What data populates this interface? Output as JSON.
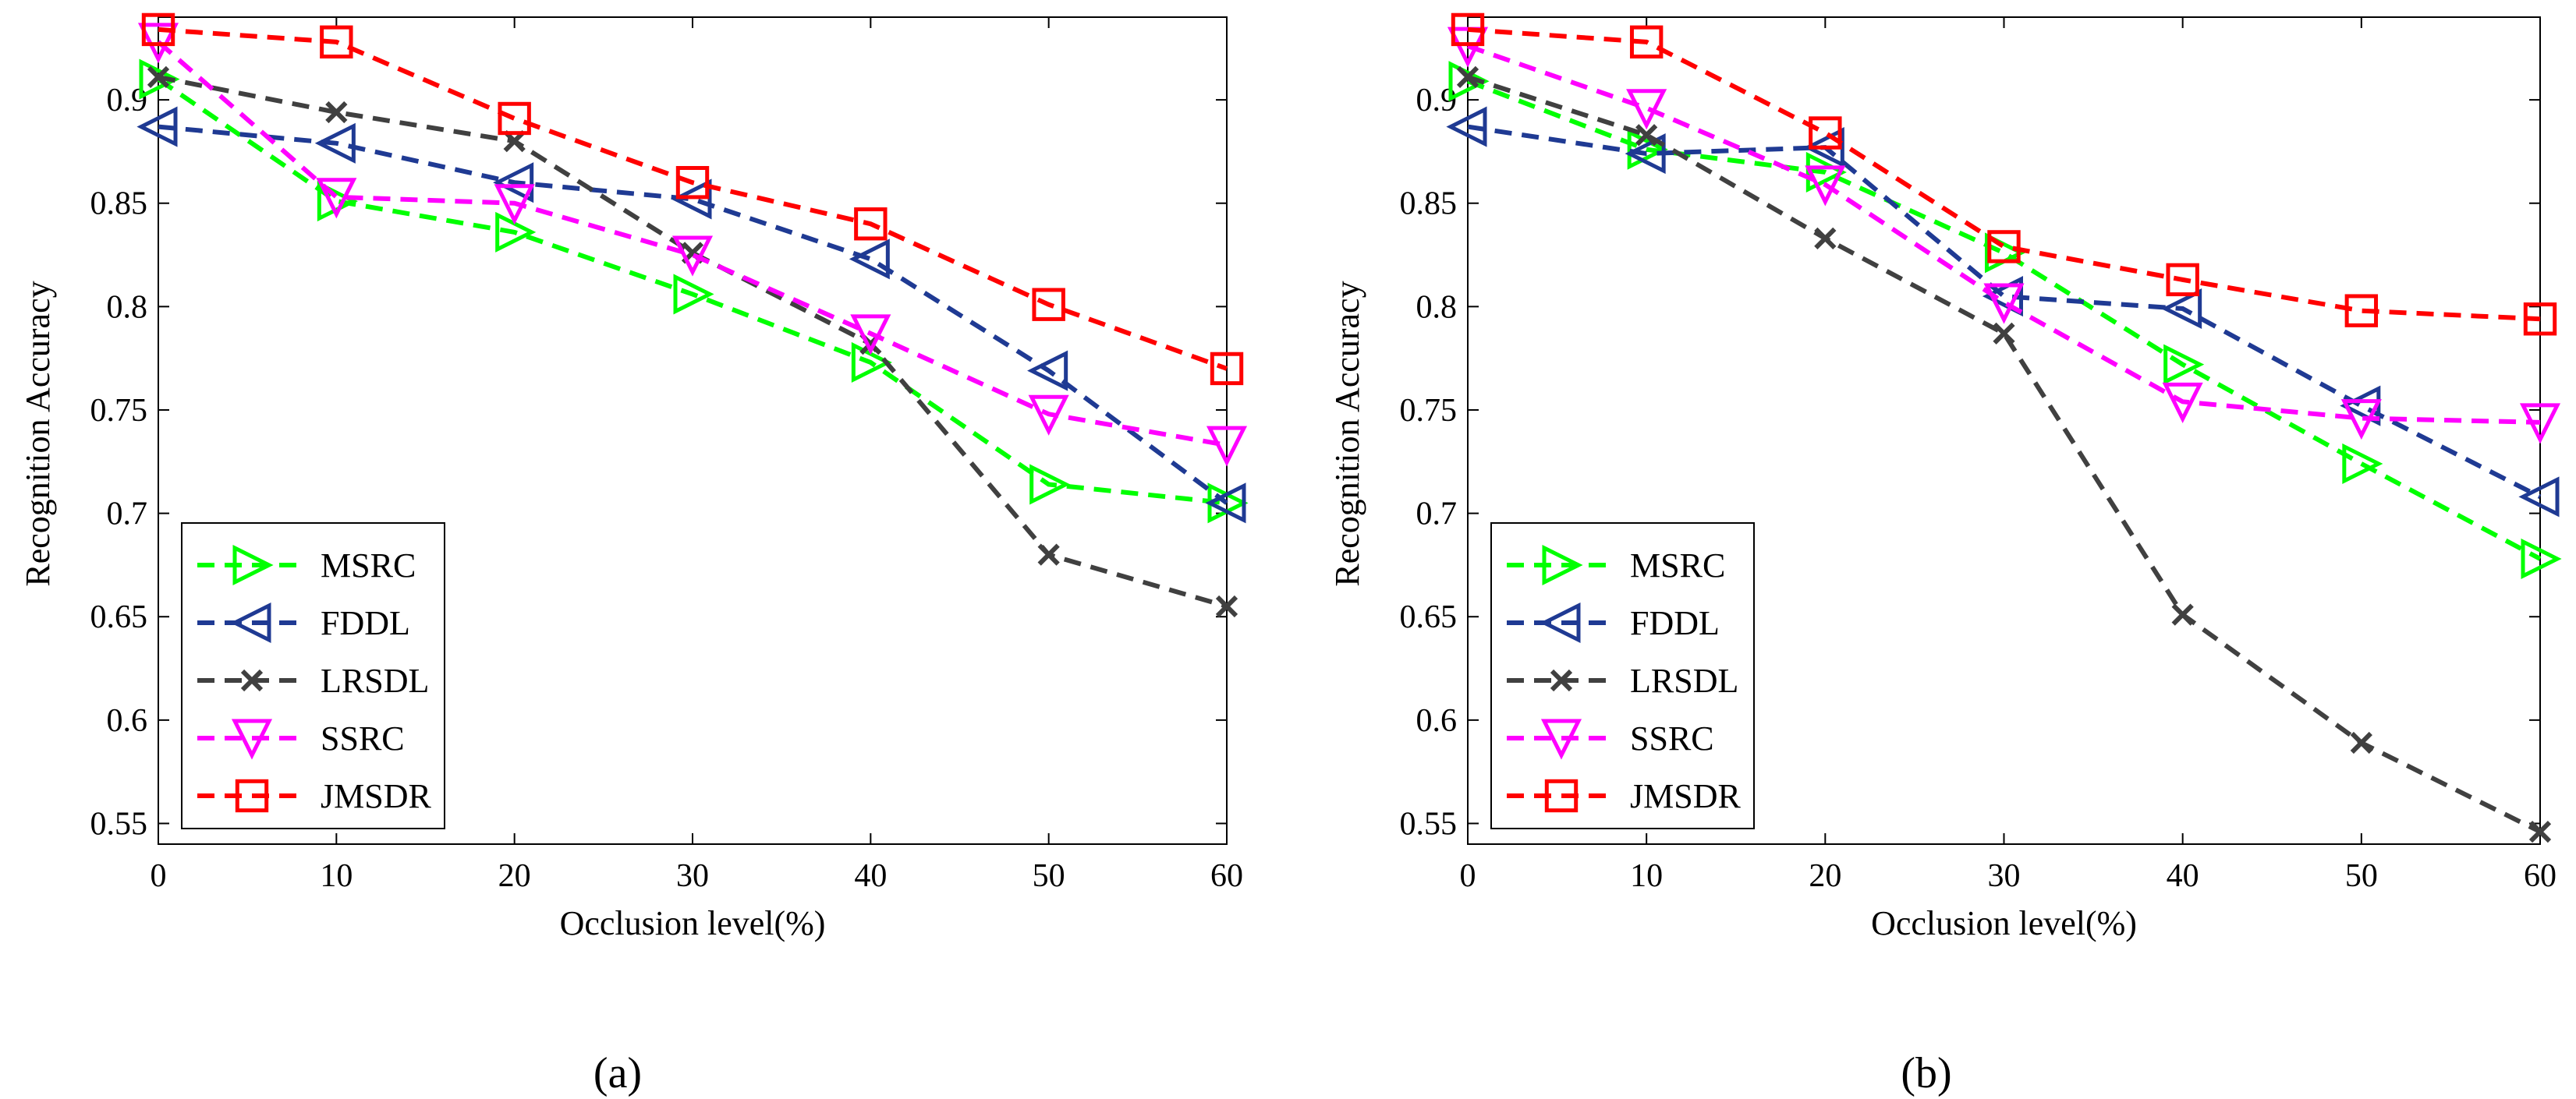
{
  "chart_data": [
    {
      "type": "line",
      "caption": "(a)",
      "xlabel": "Occlusion level(%)",
      "ylabel": "Recognition Accuracy",
      "xlim": [
        0,
        60
      ],
      "ylim": [
        0.54,
        0.94
      ],
      "xticks": [
        0,
        10,
        20,
        30,
        40,
        50,
        60
      ],
      "yticks": [
        0.55,
        0.6,
        0.65,
        0.7,
        0.75,
        0.8,
        0.85,
        0.9
      ],
      "ytick_labels": [
        "0.55",
        "0.6",
        "0.65",
        "0.7",
        "0.75",
        "0.8",
        "0.85",
        "0.9"
      ],
      "grid": false,
      "legend_position": "bottom-left",
      "x": [
        0,
        10,
        20,
        30,
        40,
        50,
        60
      ],
      "series": [
        {
          "name": "MSRC",
          "color": "#00ff00",
          "marker": "triangle-right",
          "values": [
            0.91,
            0.851,
            0.836,
            0.806,
            0.773,
            0.714,
            0.705
          ]
        },
        {
          "name": "FDDL",
          "color": "#1f3a93",
          "marker": "triangle-left",
          "values": [
            0.887,
            0.879,
            0.86,
            0.852,
            0.823,
            0.769,
            0.705
          ]
        },
        {
          "name": "LRSDL",
          "color": "#404040",
          "marker": "x",
          "values": [
            0.911,
            0.894,
            0.88,
            0.826,
            0.782,
            0.68,
            0.655
          ]
        },
        {
          "name": "SSRC",
          "color": "#ff00ff",
          "marker": "triangle-down",
          "values": [
            0.928,
            0.853,
            0.85,
            0.825,
            0.787,
            0.748,
            0.733
          ]
        },
        {
          "name": "JMSDR",
          "color": "#ff0000",
          "marker": "square",
          "values": [
            0.934,
            0.928,
            0.891,
            0.86,
            0.84,
            0.801,
            0.77
          ]
        }
      ]
    },
    {
      "type": "line",
      "caption": "(b)",
      "xlabel": "Occlusion level(%)",
      "ylabel": "Recognition Accuracy",
      "xlim": [
        0,
        60
      ],
      "ylim": [
        0.54,
        0.94
      ],
      "xticks": [
        0,
        10,
        20,
        30,
        40,
        50,
        60
      ],
      "yticks": [
        0.55,
        0.6,
        0.65,
        0.7,
        0.75,
        0.8,
        0.85,
        0.9
      ],
      "ytick_labels": [
        "0.55",
        "0.6",
        "0.65",
        "0.7",
        "0.75",
        "0.8",
        "0.85",
        "0.9"
      ],
      "grid": false,
      "legend_position": "bottom-left",
      "x": [
        0,
        10,
        20,
        30,
        40,
        50,
        60
      ],
      "series": [
        {
          "name": "MSRC",
          "color": "#00ff00",
          "marker": "triangle-right",
          "values": [
            0.909,
            0.876,
            0.865,
            0.826,
            0.772,
            0.724,
            0.678
          ]
        },
        {
          "name": "FDDL",
          "color": "#1f3a93",
          "marker": "triangle-left",
          "values": [
            0.887,
            0.874,
            0.877,
            0.805,
            0.799,
            0.752,
            0.708
          ]
        },
        {
          "name": "LRSDL",
          "color": "#404040",
          "marker": "x",
          "values": [
            0.911,
            0.883,
            0.833,
            0.787,
            0.651,
            0.589,
            0.546
          ]
        },
        {
          "name": "SSRC",
          "color": "#ff00ff",
          "marker": "triangle-down",
          "values": [
            0.926,
            0.896,
            0.859,
            0.802,
            0.754,
            0.746,
            0.744
          ]
        },
        {
          "name": "JMSDR",
          "color": "#ff0000",
          "marker": "square",
          "values": [
            0.934,
            0.928,
            0.884,
            0.829,
            0.813,
            0.798,
            0.794
          ]
        }
      ]
    }
  ]
}
